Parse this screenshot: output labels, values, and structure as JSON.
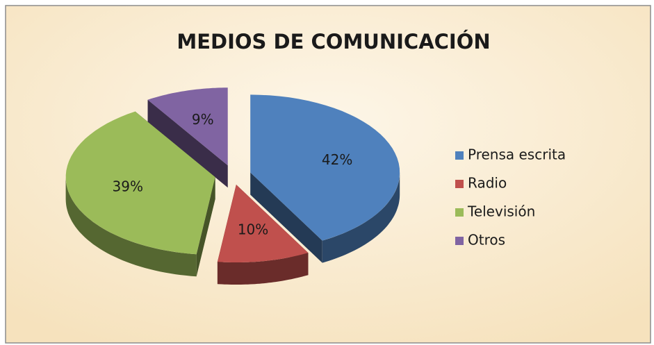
{
  "chart_data": {
    "type": "pie",
    "title": "MEDIOS DE COMUNICACIÓN",
    "categories": [
      "Prensa escrita",
      "Radio",
      "Televisión",
      "Otros"
    ],
    "values": [
      42,
      10,
      39,
      9
    ],
    "value_labels": [
      "42%",
      "10%",
      "39%",
      "9%"
    ],
    "colors": [
      "#4f81bd",
      "#c0504d",
      "#9bbb59",
      "#8064a2"
    ],
    "legend": "right"
  }
}
